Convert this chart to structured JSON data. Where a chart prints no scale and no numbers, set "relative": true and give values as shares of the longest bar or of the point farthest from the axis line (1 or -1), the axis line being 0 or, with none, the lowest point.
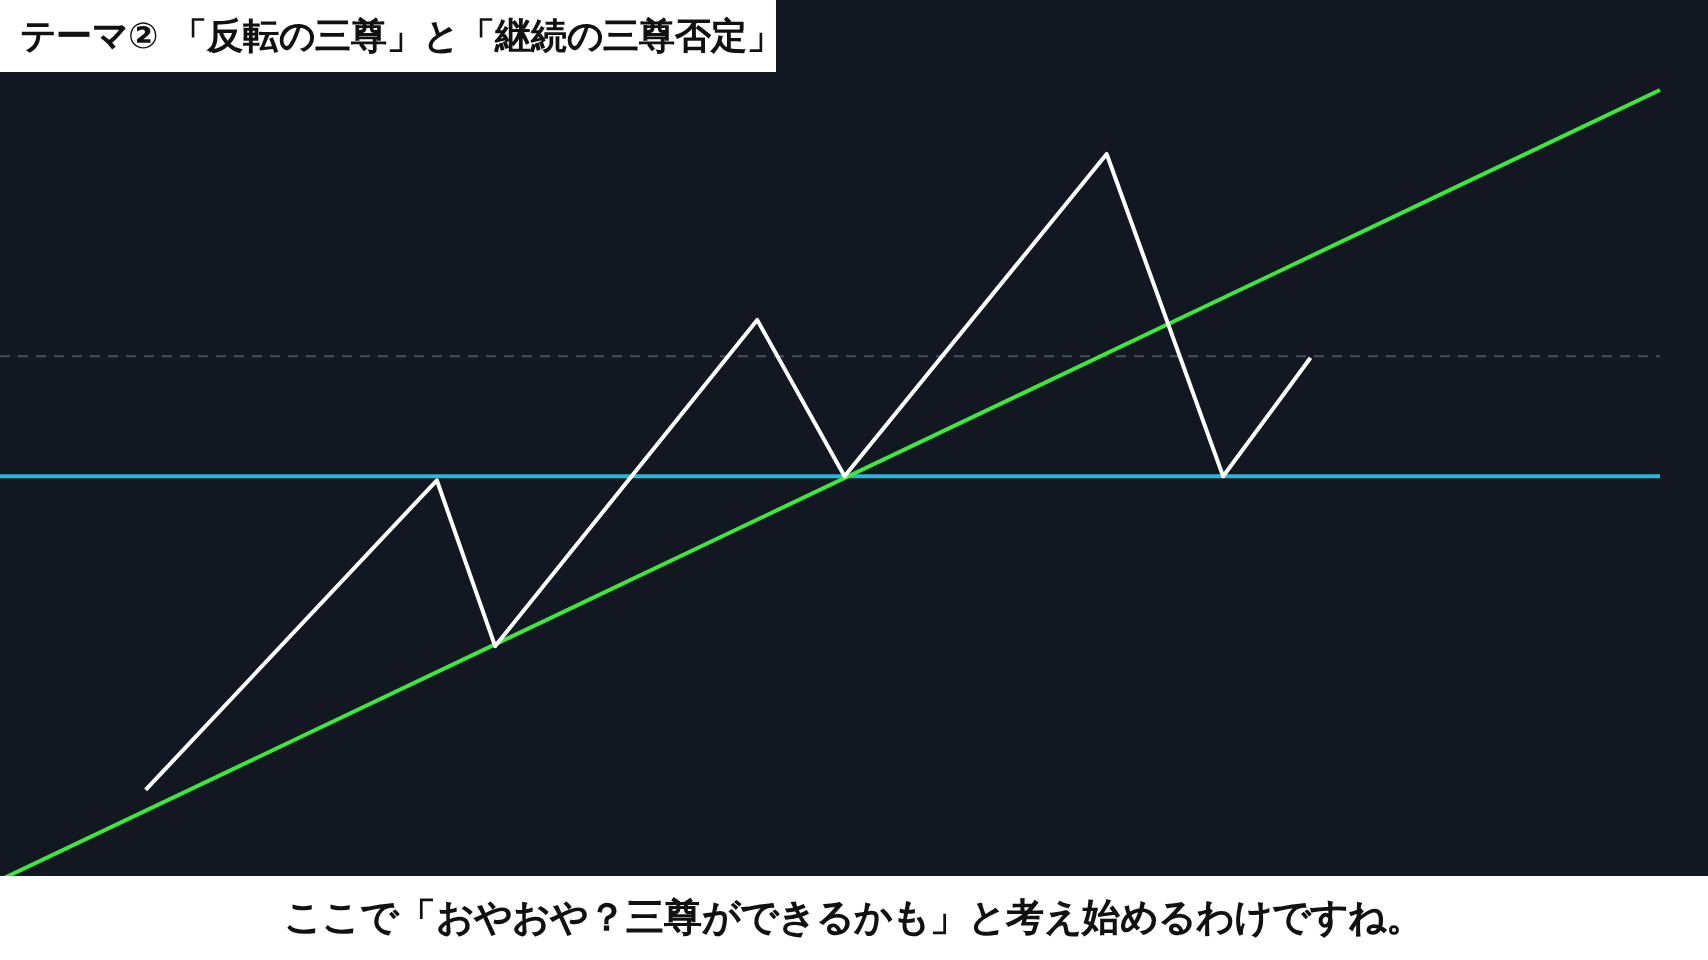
{
  "chart_data": {
    "type": "line",
    "title": "テーマ② 「反転の三尊」と「継続の三尊否定」",
    "relative": true,
    "legend": false,
    "marker": "none",
    "line_style": "solid",
    "categories": [
      null,
      null,
      null,
      null,
      null,
      null,
      null,
      null,
      null,
      null,
      null,
      null,
      null,
      null,
      null,
      null,
      null,
      null,
      null,
      null,
      null,
      null,
      null,
      null,
      null,
      null,
      null,
      null,
      null,
      null,
      null,
      null,
      null,
      null,
      null,
      null,
      null,
      null,
      null,
      null,
      null,
      null,
      null,
      null,
      null,
      null,
      null,
      null,
      null,
      null,
      null,
      null,
      null,
      null,
      null,
      null,
      null,
      null
    ],
    "series": [
      {
        "color": "#ffffff",
        "values": [
          null,
          null,
          null,
          null,
          null,
          0.114,
          null,
          null,
          null,
          null,
          null,
          null,
          null,
          null,
          null,
          0.506,
          null,
          0.296,
          null,
          null,
          null,
          null,
          null,
          null,
          null,
          null,
          0.709,
          null,
          null,
          0.511,
          null,
          null,
          null,
          null,
          null,
          null,
          null,
          null,
          0.919,
          null,
          null,
          null,
          0.511,
          null,
          null,
          0.661,
          null,
          null,
          null,
          null,
          null,
          null,
          null,
          null,
          null,
          null,
          null,
          null
        ]
      },
      {
        "color": "#3ee63e",
        "values": [
          0,
          null,
          null,
          null,
          null,
          null,
          null,
          null,
          null,
          null,
          null,
          null,
          null,
          null,
          null,
          null,
          null,
          null,
          null,
          null,
          null,
          null,
          null,
          null,
          null,
          null,
          null,
          null,
          null,
          null,
          null,
          null,
          null,
          null,
          null,
          null,
          null,
          null,
          null,
          null,
          null,
          null,
          null,
          null,
          null,
          null,
          null,
          null,
          null,
          null,
          null,
          null,
          null,
          null,
          null,
          null,
          null,
          1
        ]
      }
    ],
    "ref_lines": [
      {
        "axis": "y",
        "value": 0.511,
        "color": "#2ab7d6",
        "line_style": "solid"
      },
      {
        "axis": "y",
        "value": 0.663,
        "color": "#4a4f5c",
        "line_style": "dashed"
      }
    ],
    "annotations": [
      "ここで「おやおや？三尊ができるかも」と考え始めるわけですね。"
    ]
  }
}
